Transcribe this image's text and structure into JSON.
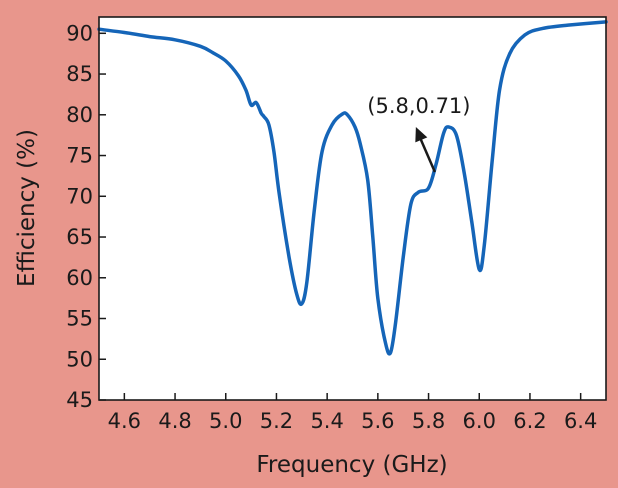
{
  "chart_data": {
    "type": "line",
    "xlabel": "Frequency (GHz)",
    "ylabel": "Efficiency (%)",
    "xlim": [
      4.5,
      6.5
    ],
    "ylim": [
      45,
      92
    ],
    "x_ticks": [
      "4.6",
      "4.8",
      "5.0",
      "5.2",
      "5.4",
      "5.6",
      "5.8",
      "6.0",
      "6.2",
      "6.4"
    ],
    "y_ticks": [
      "45",
      "50",
      "55",
      "60",
      "65",
      "70",
      "75",
      "80",
      "85",
      "90"
    ],
    "grid": false,
    "colors": {
      "line": "#1565B8",
      "background": "#E8968C",
      "plot_bg": "#FFFFFF"
    },
    "series": [
      {
        "x": [
          4.5,
          4.6,
          4.7,
          4.8,
          4.9,
          4.95,
          5.0,
          5.05,
          5.08,
          5.1,
          5.12,
          5.14,
          5.15,
          5.17,
          5.19,
          5.21,
          5.25,
          5.28,
          5.3,
          5.32,
          5.35,
          5.38,
          5.42,
          5.46,
          5.48,
          5.51,
          5.53,
          5.56,
          5.58,
          5.6,
          5.63,
          5.65,
          5.67,
          5.7,
          5.73,
          5.76,
          5.8,
          5.83,
          5.86,
          5.88,
          5.91,
          5.94,
          5.97,
          6.0,
          6.02,
          6.05,
          6.08,
          6.12,
          6.18,
          6.25,
          6.35,
          6.5
        ],
        "y": [
          90.5,
          90.1,
          89.6,
          89.2,
          88.4,
          87.6,
          86.6,
          84.8,
          83.0,
          81.2,
          81.5,
          80.2,
          79.8,
          78.8,
          75.5,
          70.5,
          62.5,
          58.0,
          56.8,
          59.5,
          68.5,
          75.5,
          78.8,
          80.1,
          80.0,
          78.5,
          76.5,
          72.0,
          65.0,
          57.5,
          52.0,
          50.8,
          54.5,
          62.5,
          69.0,
          70.5,
          71.0,
          74.0,
          77.8,
          78.5,
          77.5,
          73.0,
          67.0,
          61.0,
          64.0,
          74.0,
          83.0,
          87.5,
          89.8,
          90.6,
          91.0,
          91.4
        ]
      }
    ],
    "annotations": [
      {
        "text": "(5.8,0.71)",
        "points_to": [
          5.75,
          78.5
        ]
      }
    ]
  }
}
